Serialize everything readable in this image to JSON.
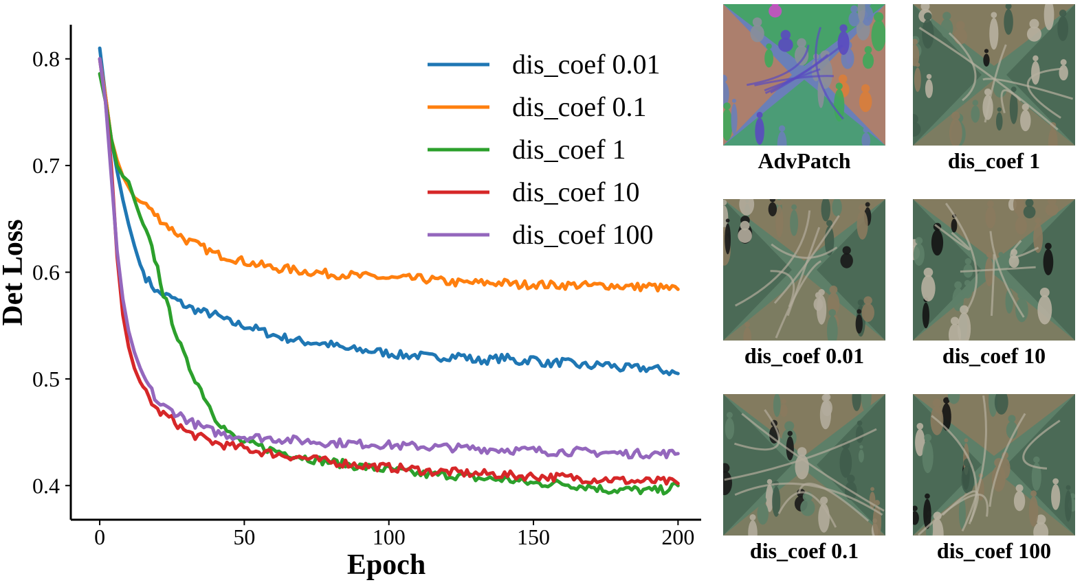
{
  "chart_data": {
    "type": "line",
    "title": "",
    "xlabel": "Epoch",
    "ylabel": "Det Loss",
    "xlim": [
      -10,
      208
    ],
    "ylim": [
      0.368,
      0.832
    ],
    "xticks": [
      0,
      50,
      100,
      150,
      200
    ],
    "yticks": [
      0.4,
      0.5,
      0.6,
      0.7,
      0.8
    ],
    "xtick_labels": [
      "0",
      "50",
      "100",
      "150",
      "200"
    ],
    "ytick_labels": [
      "0.4",
      "0.5",
      "0.6",
      "0.7",
      "0.8"
    ],
    "grid": false,
    "legend_position": "top-right",
    "series": [
      {
        "name": "dis_coef 0.01",
        "color": "#1f77b4",
        "x": [
          0,
          2,
          4,
          6,
          8,
          10,
          12,
          14,
          16,
          18,
          20,
          25,
          30,
          35,
          40,
          45,
          50,
          55,
          60,
          65,
          70,
          75,
          80,
          85,
          90,
          95,
          100,
          105,
          110,
          115,
          120,
          125,
          130,
          135,
          140,
          145,
          150,
          155,
          160,
          165,
          170,
          175,
          180,
          185,
          190,
          195,
          200
        ],
        "y": [
          0.81,
          0.765,
          0.725,
          0.695,
          0.668,
          0.645,
          0.625,
          0.607,
          0.595,
          0.588,
          0.581,
          0.576,
          0.568,
          0.563,
          0.56,
          0.553,
          0.55,
          0.546,
          0.541,
          0.538,
          0.535,
          0.534,
          0.532,
          0.528,
          0.527,
          0.526,
          0.524,
          0.522,
          0.522,
          0.52,
          0.521,
          0.522,
          0.517,
          0.518,
          0.52,
          0.516,
          0.519,
          0.514,
          0.516,
          0.513,
          0.512,
          0.514,
          0.51,
          0.51,
          0.51,
          0.508,
          0.505
        ]
      },
      {
        "name": "dis_coef 0.1",
        "color": "#ff7f0e",
        "x": [
          0,
          2,
          4,
          6,
          8,
          10,
          12,
          14,
          16,
          18,
          20,
          25,
          30,
          35,
          40,
          45,
          50,
          55,
          60,
          65,
          70,
          75,
          80,
          85,
          90,
          95,
          100,
          105,
          110,
          115,
          120,
          125,
          130,
          135,
          140,
          145,
          150,
          155,
          160,
          165,
          170,
          175,
          180,
          185,
          190,
          195,
          200
        ],
        "y": [
          0.8,
          0.765,
          0.725,
          0.705,
          0.69,
          0.68,
          0.67,
          0.666,
          0.664,
          0.657,
          0.652,
          0.64,
          0.63,
          0.624,
          0.617,
          0.614,
          0.61,
          0.607,
          0.604,
          0.603,
          0.601,
          0.6,
          0.598,
          0.598,
          0.596,
          0.596,
          0.594,
          0.594,
          0.594,
          0.593,
          0.591,
          0.59,
          0.59,
          0.59,
          0.59,
          0.588,
          0.589,
          0.588,
          0.588,
          0.588,
          0.587,
          0.588,
          0.587,
          0.586,
          0.587,
          0.585,
          0.584
        ]
      },
      {
        "name": "dis_coef 1",
        "color": "#2ca02c",
        "x": [
          0,
          2,
          4,
          6,
          8,
          10,
          12,
          14,
          16,
          18,
          20,
          22,
          25,
          28,
          30,
          35,
          40,
          45,
          50,
          55,
          60,
          65,
          70,
          75,
          80,
          85,
          90,
          95,
          100,
          105,
          110,
          115,
          120,
          125,
          130,
          135,
          140,
          145,
          150,
          155,
          160,
          165,
          170,
          175,
          180,
          185,
          190,
          195,
          200
        ],
        "y": [
          0.786,
          0.76,
          0.725,
          0.7,
          0.69,
          0.685,
          0.668,
          0.652,
          0.638,
          0.622,
          0.604,
          0.58,
          0.555,
          0.53,
          0.516,
          0.49,
          0.464,
          0.448,
          0.44,
          0.437,
          0.433,
          0.43,
          0.427,
          0.424,
          0.422,
          0.42,
          0.418,
          0.416,
          0.415,
          0.413,
          0.411,
          0.41,
          0.41,
          0.409,
          0.407,
          0.406,
          0.406,
          0.404,
          0.402,
          0.402,
          0.402,
          0.4,
          0.399,
          0.396,
          0.396,
          0.396,
          0.395,
          0.396,
          0.4
        ]
      },
      {
        "name": "dis_coef 10",
        "color": "#d62728",
        "x": [
          0,
          2,
          4,
          6,
          8,
          10,
          12,
          14,
          16,
          18,
          20,
          22,
          25,
          28,
          30,
          35,
          40,
          45,
          50,
          55,
          60,
          65,
          70,
          75,
          80,
          85,
          90,
          95,
          100,
          105,
          110,
          115,
          120,
          125,
          130,
          135,
          140,
          145,
          150,
          155,
          160,
          165,
          170,
          175,
          180,
          185,
          190,
          195,
          200
        ],
        "y": [
          0.8,
          0.76,
          0.7,
          0.615,
          0.56,
          0.53,
          0.51,
          0.497,
          0.488,
          0.478,
          0.47,
          0.467,
          0.462,
          0.455,
          0.45,
          0.445,
          0.44,
          0.437,
          0.435,
          0.432,
          0.43,
          0.428,
          0.426,
          0.424,
          0.422,
          0.421,
          0.419,
          0.418,
          0.417,
          0.416,
          0.415,
          0.413,
          0.413,
          0.412,
          0.411,
          0.411,
          0.41,
          0.409,
          0.409,
          0.408,
          0.408,
          0.407,
          0.406,
          0.406,
          0.405,
          0.404,
          0.404,
          0.404,
          0.402
        ]
      },
      {
        "name": "dis_coef 100",
        "color": "#9467bd",
        "x": [
          0,
          2,
          4,
          6,
          8,
          10,
          12,
          14,
          16,
          18,
          20,
          22,
          25,
          28,
          30,
          35,
          40,
          45,
          50,
          55,
          60,
          65,
          70,
          75,
          80,
          85,
          90,
          95,
          100,
          105,
          110,
          115,
          120,
          125,
          130,
          135,
          140,
          145,
          150,
          155,
          160,
          165,
          170,
          175,
          180,
          185,
          190,
          195,
          200
        ],
        "y": [
          0.8,
          0.76,
          0.69,
          0.62,
          0.575,
          0.545,
          0.525,
          0.51,
          0.498,
          0.488,
          0.478,
          0.474,
          0.47,
          0.466,
          0.462,
          0.455,
          0.45,
          0.447,
          0.446,
          0.445,
          0.444,
          0.443,
          0.442,
          0.441,
          0.44,
          0.44,
          0.439,
          0.439,
          0.438,
          0.437,
          0.437,
          0.436,
          0.436,
          0.435,
          0.435,
          0.434,
          0.434,
          0.433,
          0.433,
          0.432,
          0.432,
          0.432,
          0.431,
          0.431,
          0.43,
          0.43,
          0.43,
          0.43,
          0.43
        ]
      }
    ]
  },
  "patches": [
    {
      "caption": "AdvPatch",
      "style": "colorful",
      "colors": [
        "#6a7fb8",
        "#3fa85a",
        "#c84fc4",
        "#5a4ac0",
        "#d97e3a",
        "#8a8f9a"
      ]
    },
    {
      "caption": "dis_coef 1",
      "style": "camo",
      "colors": [
        "#5d7f68",
        "#8a7a5e",
        "#141414",
        "#b7b0a0",
        "#3f5c4b"
      ]
    },
    {
      "caption": "dis_coef 0.01",
      "style": "camo",
      "colors": [
        "#5d7f68",
        "#8a7a5e",
        "#1a1a1a",
        "#b3ac9c",
        "#3f5c4b"
      ]
    },
    {
      "caption": "dis_coef 10",
      "style": "camo",
      "colors": [
        "#5d7f68",
        "#8a7a5e",
        "#141414",
        "#b7b0a0",
        "#3f5c4b"
      ]
    },
    {
      "caption": "dis_coef 0.1",
      "style": "camo",
      "colors": [
        "#5d7f68",
        "#8a7a5e",
        "#1a1a1a",
        "#b3ac9c",
        "#3f5c4b"
      ]
    },
    {
      "caption": "dis_coef 100",
      "style": "camo",
      "colors": [
        "#5d7f68",
        "#8a7a5e",
        "#141414",
        "#b7b0a0",
        "#3f5c4b"
      ]
    }
  ]
}
